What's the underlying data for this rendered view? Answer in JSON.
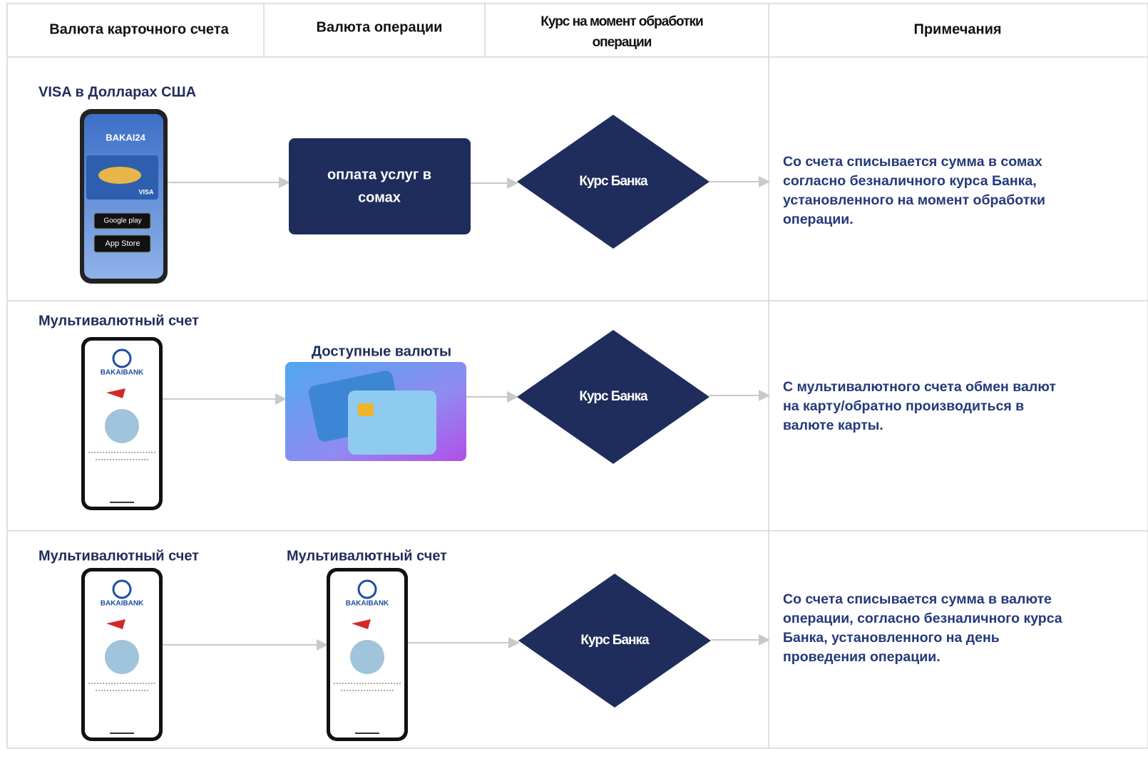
{
  "header": {
    "columns": [
      "Валюта карточного счета",
      "Валюта операции",
      [
        "Курс на момент обработки",
        "операции"
      ],
      "Примечания"
    ]
  },
  "rows": [
    {
      "account": {
        "label": "VISA в Долларах США",
        "screen": [
          "BAKAI24",
          "VISA",
          "Google play",
          "App Store"
        ]
      },
      "operation": {
        "box": [
          "оплата услуг в",
          "сомах"
        ]
      },
      "rate": "Курс Банка",
      "note": [
        "Со счета списывается сумма в сомах",
        "согласно безналичного курса Банка,",
        "установленного на момент обработки",
        "операции."
      ]
    },
    {
      "account": {
        "label": "Мультивалютный счет",
        "screen": [
          "BAKAIBANK"
        ]
      },
      "operation": {
        "label": "Доступные валюты"
      },
      "rate": "Курс Банка",
      "note": [
        "С мультивалютного счета обмен валют",
        "на карту/обратно производиться в",
        "валюте карты."
      ]
    },
    {
      "account": {
        "label": "Мультивалютный счет",
        "screen": [
          "BAKAIBANK"
        ]
      },
      "operation": {
        "label": "Мультивалютный счет",
        "screen": [
          "BAKAIBANK"
        ]
      },
      "rate": "Курс Банка",
      "note": [
        "Со счета списывается сумма в валюте",
        "операции, согласно безналичного курса",
        "Банка, установленного на день",
        "проведения операции."
      ]
    }
  ]
}
